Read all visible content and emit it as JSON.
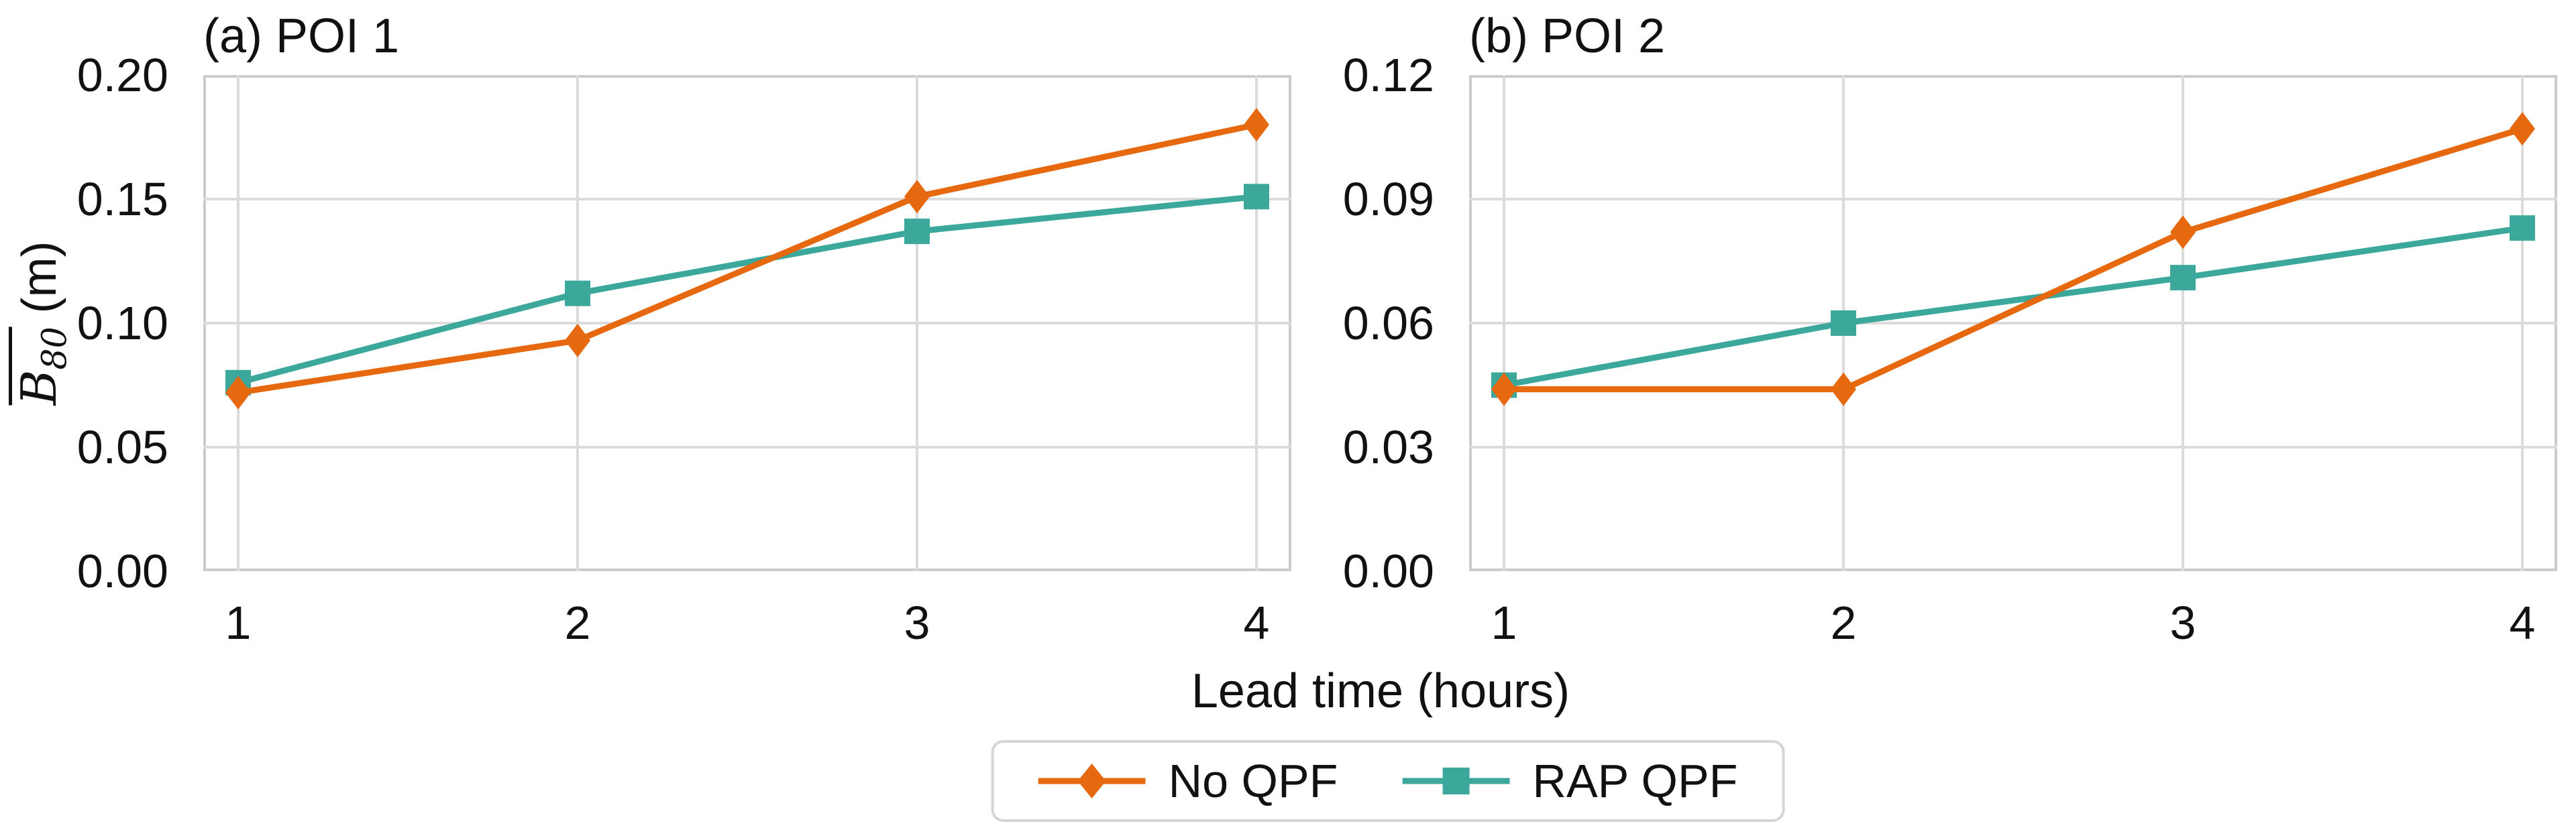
{
  "figure": {
    "x_axis_label": "Lead time (hours)",
    "y_axis_label": {
      "symbol": "B",
      "subscript": "80",
      "unit": " (m)"
    },
    "colors": {
      "no_qpf_orange": "#E6680F",
      "rap_qpf_teal": "#3CA79B",
      "gridline": "#dbdbdb",
      "spine": "#cccccc",
      "text": "#111111",
      "legend_border": "#d5d5d5"
    }
  },
  "legend": {
    "position": "bottom-center",
    "items": [
      {
        "label": "No QPF",
        "marker": "diamond",
        "color": "#E6680F"
      },
      {
        "label": "RAP QPF",
        "marker": "square",
        "color": "#3CA79B"
      }
    ]
  },
  "chart_data": [
    {
      "type": "line",
      "title": "(a) POI 1",
      "x": [
        1,
        2,
        3,
        4
      ],
      "xlim": [
        1,
        4
      ],
      "xticks": [
        {
          "value": 1,
          "label": "1"
        },
        {
          "value": 2,
          "label": "2"
        },
        {
          "value": 3,
          "label": "3"
        },
        {
          "value": 4,
          "label": "4"
        }
      ],
      "ylim": [
        0,
        0.2
      ],
      "yticks": [
        {
          "value": 0.2,
          "label": "0.20"
        },
        {
          "value": 0.15,
          "label": "0.15"
        },
        {
          "value": 0.1,
          "label": "0.10"
        },
        {
          "value": 0.05,
          "label": "0.05"
        },
        {
          "value": 0.0,
          "label": "0.00"
        }
      ],
      "grid": true,
      "series": [
        {
          "name": "No QPF",
          "marker": "diamond",
          "color": "#E6680F",
          "values": [
            0.072,
            0.093,
            0.151,
            0.18
          ]
        },
        {
          "name": "RAP QPF",
          "marker": "square",
          "color": "#3CA79B",
          "values": [
            0.076,
            0.112,
            0.137,
            0.151
          ]
        }
      ]
    },
    {
      "type": "line",
      "title": "(b) POI 2",
      "x": [
        1,
        2,
        3,
        4
      ],
      "xlim": [
        1,
        4
      ],
      "xticks": [
        {
          "value": 1,
          "label": "1"
        },
        {
          "value": 2,
          "label": "2"
        },
        {
          "value": 3,
          "label": "3"
        },
        {
          "value": 4,
          "label": "4"
        }
      ],
      "ylim": [
        0,
        0.12
      ],
      "yticks": [
        {
          "value": 0.12,
          "label": "0.12"
        },
        {
          "value": 0.09,
          "label": "0.09"
        },
        {
          "value": 0.06,
          "label": "0.06"
        },
        {
          "value": 0.03,
          "label": "0.03"
        },
        {
          "value": 0.0,
          "label": "0.00"
        }
      ],
      "grid": true,
      "series": [
        {
          "name": "No QPF",
          "marker": "diamond",
          "color": "#E6680F",
          "values": [
            0.044,
            0.044,
            0.082,
            0.107
          ]
        },
        {
          "name": "RAP QPF",
          "marker": "square",
          "color": "#3CA79B",
          "values": [
            0.045,
            0.06,
            0.071,
            0.083
          ]
        }
      ]
    }
  ]
}
